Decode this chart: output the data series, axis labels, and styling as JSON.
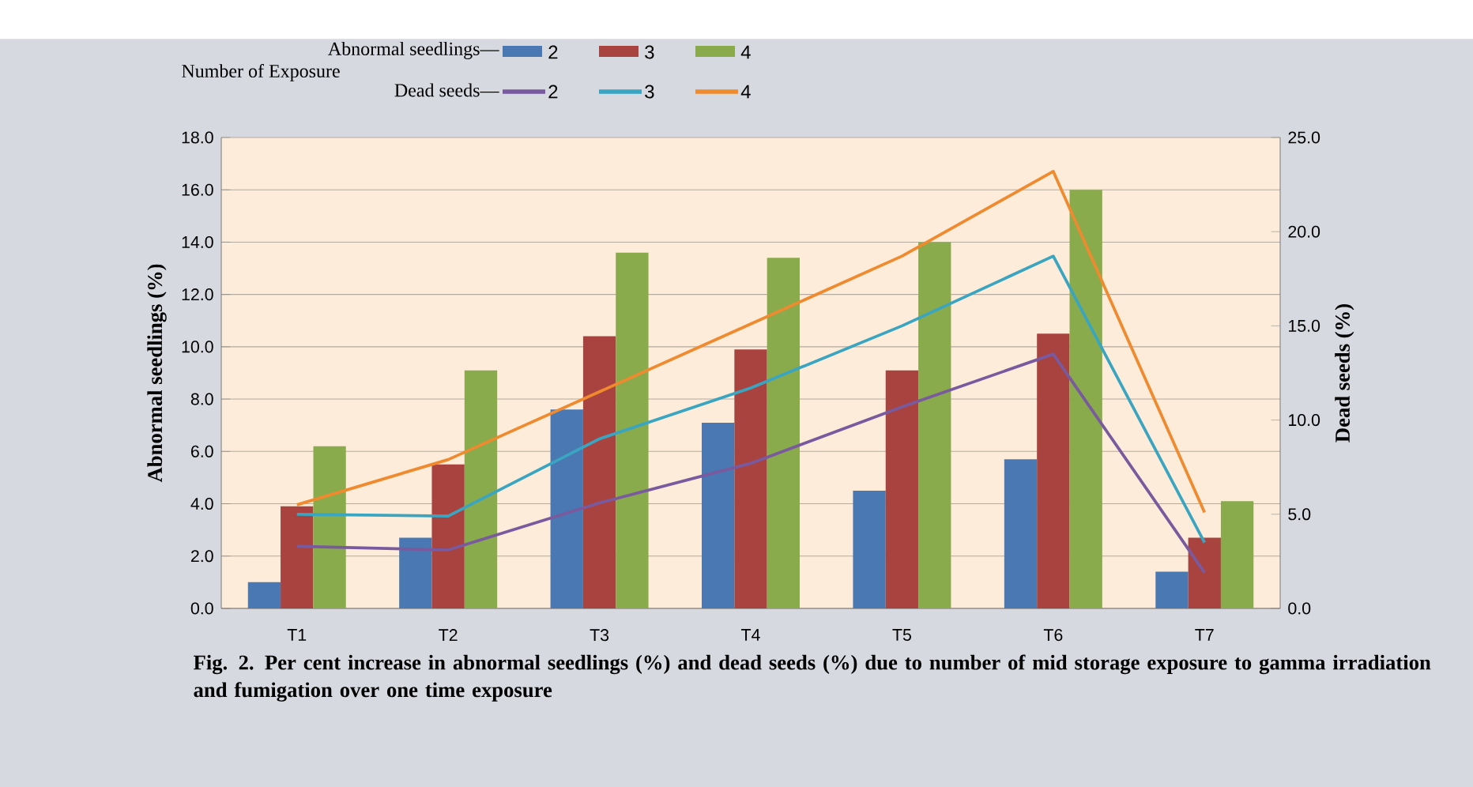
{
  "chart_data": {
    "type": "bar",
    "title": null,
    "categories": [
      "T1",
      "T2",
      "T3",
      "T4",
      "T5",
      "T6",
      "T7"
    ],
    "series": [
      {
        "name": "2",
        "color": "#4a78b2",
        "values": [
          1.0,
          2.7,
          7.6,
          7.1,
          4.5,
          5.7,
          1.4
        ]
      },
      {
        "name": "3",
        "color": "#a84340",
        "values": [
          3.9,
          5.5,
          10.4,
          9.9,
          9.1,
          10.5,
          2.7
        ]
      },
      {
        "name": "4",
        "color": "#8aab4c",
        "values": [
          6.2,
          9.1,
          13.6,
          13.4,
          14.0,
          16.0,
          4.1
        ]
      },
      {
        "name": "2",
        "color": "#7a5a9e",
        "type": "line",
        "axis": "y2",
        "values": [
          3.3,
          3.1,
          5.6,
          7.7,
          10.7,
          13.5,
          1.9
        ]
      },
      {
        "name": "3",
        "color": "#3aa5c0",
        "type": "line",
        "axis": "y2",
        "values": [
          5.0,
          4.9,
          9.0,
          11.7,
          15.0,
          18.7,
          3.5
        ]
      },
      {
        "name": "4",
        "color": "#ef8a2e",
        "type": "line",
        "axis": "y2",
        "values": [
          5.5,
          7.9,
          11.5,
          15.1,
          18.7,
          23.2,
          5.1
        ]
      }
    ],
    "ylabel": "Abnormal seedlings (%)",
    "y2label": "Dead seeds (%)",
    "legend_title": "Number of Exposure",
    "legend": "top",
    "grid": "y",
    "marker": "none",
    "line_style": "solid",
    "ylim": [
      0,
      18
    ],
    "yticks": [
      {
        "value": 0,
        "label": "0.0"
      },
      {
        "value": 2,
        "label": "2.0"
      },
      {
        "value": 4,
        "label": "4.0"
      },
      {
        "value": 6,
        "label": "6.0"
      },
      {
        "value": 8,
        "label": "8.0"
      },
      {
        "value": 10,
        "label": "10.0"
      },
      {
        "value": 12,
        "label": "12.0"
      },
      {
        "value": 14,
        "label": "14.0"
      },
      {
        "value": 16,
        "label": "16.0"
      },
      {
        "value": 18,
        "label": "18.0"
      }
    ],
    "y2lim": [
      0,
      25
    ],
    "y2ticks": [
      {
        "value": 0,
        "label": "0.0"
      },
      {
        "value": 5,
        "label": "5.0"
      },
      {
        "value": 10,
        "label": "10.0"
      },
      {
        "value": 15,
        "label": "15.0"
      },
      {
        "value": 20,
        "label": "20.0"
      },
      {
        "value": 25,
        "label": "25.0"
      }
    ],
    "annotations": [
      "Fig. 2. Per cent increase in abnormal seedlings (%) and dead seeds (%) due to number of mid storage exposure to gamma irradiation and fumigation over one time exposure",
      "Abnormal seedlings—",
      "Dead seeds—"
    ]
  }
}
